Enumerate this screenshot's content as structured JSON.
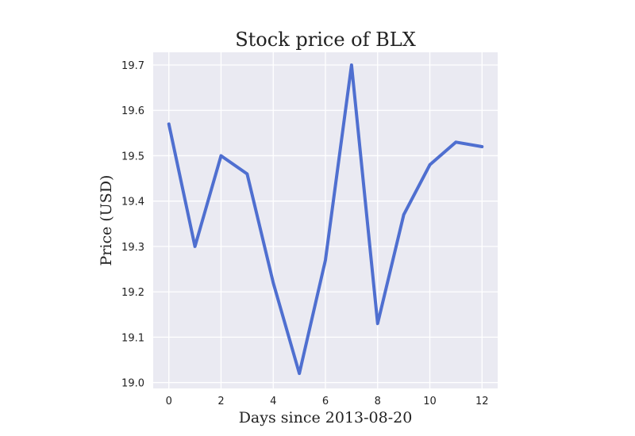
{
  "chart_data": {
    "type": "line",
    "title": "Stock price of BLX",
    "xlabel": "Days since 2013-08-20",
    "ylabel": "Price (USD)",
    "x": [
      0,
      1,
      2,
      3,
      4,
      5,
      6,
      7,
      8,
      9,
      10,
      11,
      12
    ],
    "series": [
      {
        "values": [
          19.57,
          19.3,
          19.5,
          19.46,
          19.22,
          19.02,
          19.27,
          19.7,
          19.13,
          19.37,
          19.48,
          19.53,
          19.52
        ]
      }
    ],
    "xlim": [
      -0.6,
      12.6
    ],
    "ylim": [
      18.987,
      19.728
    ],
    "xticks": [
      0,
      2,
      4,
      6,
      8,
      10,
      12
    ],
    "yticks": [
      "19.0",
      "19.1",
      "19.2",
      "19.3",
      "19.4",
      "19.5",
      "19.6",
      "19.7"
    ],
    "grid": true,
    "line_color": "#4f6fd0",
    "background_color": "#eaeaf2"
  }
}
